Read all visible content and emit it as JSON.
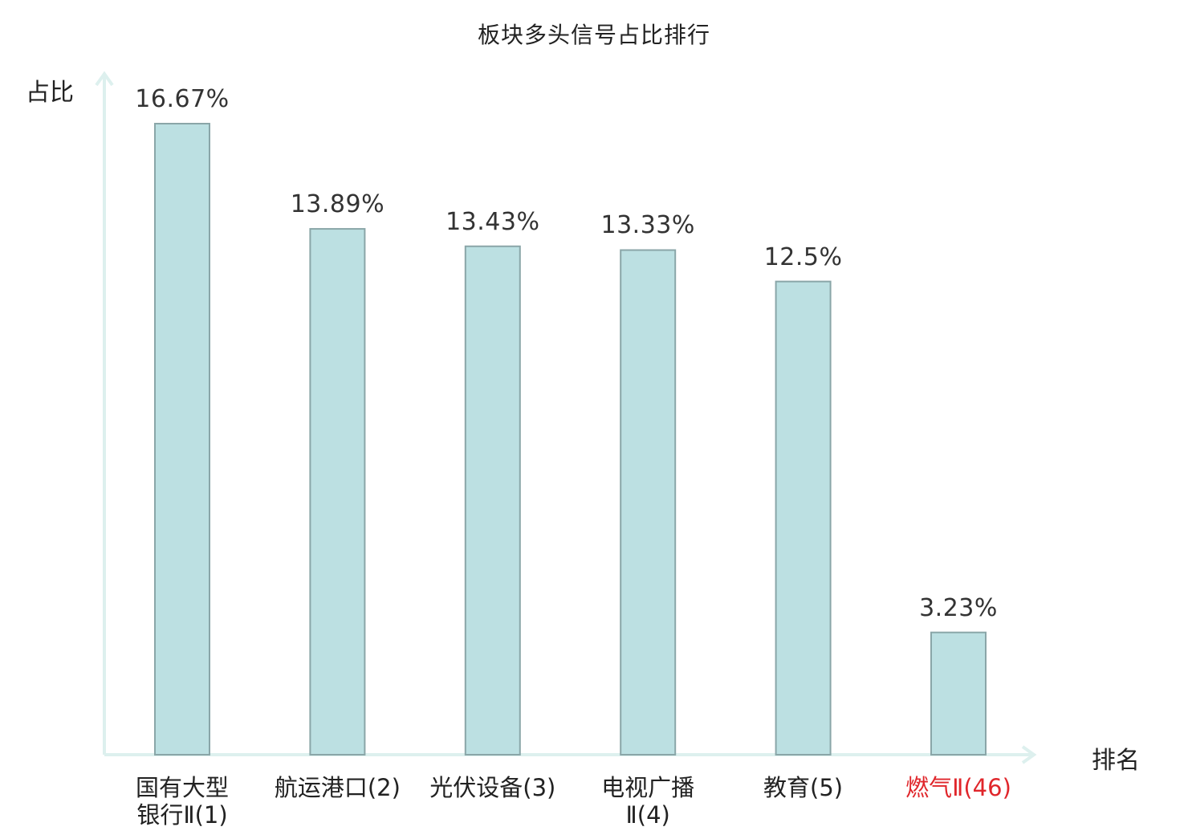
{
  "chart_data": {
    "type": "bar",
    "title": "板块多头信号占比排行",
    "xlabel": "排名",
    "ylabel": "占比",
    "categories": [
      [
        "国有大型",
        "银行Ⅱ(1)"
      ],
      [
        "航运港口(2)"
      ],
      [
        "光伏设备(3)"
      ],
      [
        "电视广播",
        "Ⅱ(4)"
      ],
      [
        "教育(5)"
      ],
      [
        "燃气Ⅱ(46)"
      ]
    ],
    "values": [
      16.67,
      13.89,
      13.43,
      13.33,
      12.5,
      3.23
    ],
    "value_labels": [
      "16.67%",
      "13.89%",
      "13.43%",
      "13.33%",
      "12.5%",
      "3.23%"
    ],
    "ylim": [
      0,
      18
    ],
    "highlight_index": 5,
    "grid": false,
    "legend": "none"
  },
  "colors": {
    "bar_fill": "#bce0e2",
    "bar_stroke": "#8aa6a8",
    "axis": "#ddf0ee",
    "text": "#222222",
    "value_text": "#333333",
    "highlight_text": "#e0262b"
  }
}
